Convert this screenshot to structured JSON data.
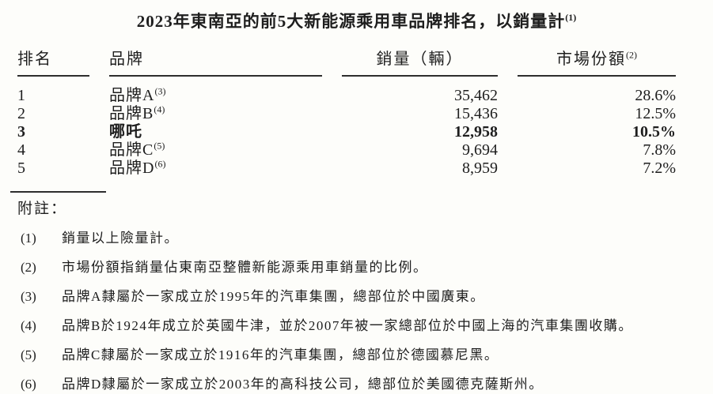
{
  "title": {
    "text": "2023年東南亞的前5大新能源乘用車品牌排名，以銷量計",
    "superscript": "(1)"
  },
  "table": {
    "headers": {
      "rank": "排名",
      "brand": "品牌",
      "sales": "銷量（輛）",
      "share": "市場份額",
      "share_superscript": "(2)"
    },
    "rows": [
      {
        "rank": "1",
        "brand": "品牌A",
        "brand_superscript": "(3)",
        "sales": "35,462",
        "share": "28.6%"
      },
      {
        "rank": "2",
        "brand": "品牌B",
        "brand_superscript": "(4)",
        "sales": "15,436",
        "share": "12.5%"
      },
      {
        "rank": "3",
        "brand": "哪吒",
        "brand_superscript": "",
        "sales": "12,958",
        "share": "10.5%"
      },
      {
        "rank": "4",
        "brand": "品牌C",
        "brand_superscript": "(5)",
        "sales": "9,694",
        "share": "7.8%"
      },
      {
        "rank": "5",
        "brand": "品牌D",
        "brand_superscript": "(6)",
        "sales": "8,959",
        "share": "7.2%"
      }
    ]
  },
  "notes": {
    "label": "附註：",
    "items": [
      {
        "num": "(1)",
        "text": "銷量以上險量計。"
      },
      {
        "num": "(2)",
        "text": "市場份額指銷量佔東南亞整體新能源乘用車銷量的比例。"
      },
      {
        "num": "(3)",
        "text": "品牌A隸屬於一家成立於1995年的汽車集團，總部位於中國廣東。"
      },
      {
        "num": "(4)",
        "text": "品牌B於1924年成立於英國牛津，並於2007年被一家總部位於中國上海的汽車集團收購。"
      },
      {
        "num": "(5)",
        "text": "品牌C隸屬於一家成立於1916年的汽車集團，總部位於德國慕尼黑。"
      },
      {
        "num": "(6)",
        "text": "品牌D隸屬於一家成立於2003年的高科技公司，總部位於美國德克薩斯州。"
      }
    ]
  },
  "colors": {
    "background": "#fdfdfa",
    "text": "#1e1e1e",
    "rule": "#2d2d2d"
  }
}
